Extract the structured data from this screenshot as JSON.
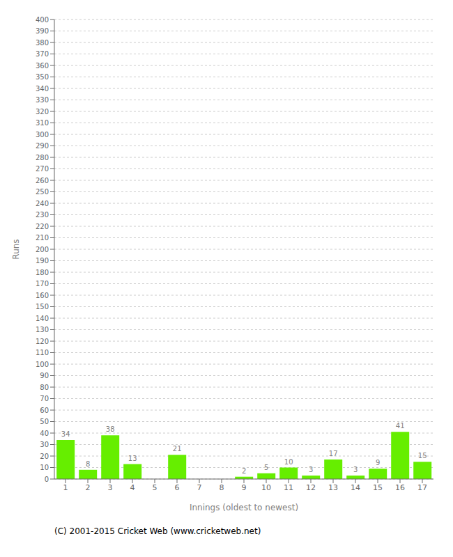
{
  "chart_data": {
    "type": "bar",
    "xlabel": "Innings (oldest to newest)",
    "ylabel": "Runs",
    "categories": [
      "1",
      "2",
      "3",
      "4",
      "5",
      "6",
      "7",
      "8",
      "9",
      "10",
      "11",
      "12",
      "13",
      "14",
      "15",
      "16",
      "17"
    ],
    "values": [
      34,
      8,
      38,
      13,
      0,
      21,
      0,
      0,
      2,
      5,
      10,
      3,
      17,
      3,
      9,
      41,
      15
    ],
    "color": "#66ee00",
    "ylim": [
      0,
      400
    ],
    "yticks": [
      0,
      10,
      20,
      30,
      40,
      50,
      60,
      70,
      80,
      90,
      100,
      110,
      120,
      130,
      140,
      150,
      160,
      170,
      180,
      190,
      200,
      210,
      220,
      230,
      240,
      250,
      260,
      270,
      280,
      290,
      300,
      310,
      320,
      330,
      340,
      350,
      360,
      370,
      380,
      390,
      400
    ],
    "grid": true,
    "data_labels": true,
    "annotations": [
      "(C) 2001-2015 Cricket Web (www.cricketweb.net)"
    ]
  }
}
